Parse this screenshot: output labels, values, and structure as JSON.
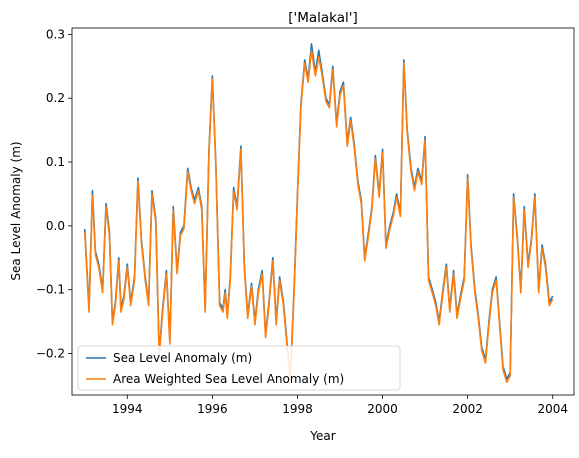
{
  "chart_data": {
    "type": "line",
    "title": "['Malakal']",
    "xlabel": "Year",
    "ylabel": "Sea Level Anomaly (m)",
    "xlim": [
      1992.7,
      2004.5
    ],
    "ylim": [
      -0.265,
      0.31
    ],
    "xticks": [
      1994,
      1996,
      1998,
      2000,
      2002,
      2004
    ],
    "xtick_labels": [
      "1994",
      "1996",
      "1998",
      "2000",
      "2002",
      "2004"
    ],
    "yticks": [
      -0.2,
      -0.1,
      0.0,
      0.1,
      0.2,
      0.3
    ],
    "ytick_labels": [
      "−0.2",
      "−0.1",
      "0.0",
      "0.1",
      "0.2",
      "0.3"
    ],
    "grid": false,
    "legend": {
      "placement": "lower-left",
      "entries": [
        "Sea Level Anomaly (m)",
        "Area Weighted Sea Level Anomaly (m)"
      ]
    },
    "series": [
      {
        "name": "Sea Level Anomaly (m)",
        "color": "#1f77b4",
        "x": [
          1993.0,
          1993.1,
          1993.18,
          1993.25,
          1993.33,
          1993.42,
          1993.5,
          1993.58,
          1993.65,
          1993.72,
          1993.8,
          1993.85,
          1993.92,
          1994.0,
          1994.08,
          1994.17,
          1994.25,
          1994.33,
          1994.42,
          1994.5,
          1994.58,
          1994.67,
          1994.75,
          1994.83,
          1994.92,
          1995.0,
          1995.08,
          1995.17,
          1995.25,
          1995.33,
          1995.42,
          1995.5,
          1995.58,
          1995.67,
          1995.75,
          1995.83,
          1995.92,
          1996.0,
          1996.08,
          1996.17,
          1996.25,
          1996.3,
          1996.35,
          1996.42,
          1996.5,
          1996.58,
          1996.67,
          1996.75,
          1996.83,
          1996.92,
          1997.0,
          1997.08,
          1997.17,
          1997.25,
          1997.33,
          1997.42,
          1997.5,
          1997.58,
          1997.67,
          1997.75,
          1997.83,
          1997.92,
          1998.0,
          1998.08,
          1998.17,
          1998.25,
          1998.33,
          1998.42,
          1998.5,
          1998.58,
          1998.67,
          1998.75,
          1998.83,
          1998.92,
          1999.0,
          1999.08,
          1999.17,
          1999.25,
          1999.33,
          1999.42,
          1999.5,
          1999.58,
          1999.67,
          1999.75,
          1999.83,
          1999.92,
          2000.0,
          2000.08,
          2000.17,
          2000.25,
          2000.33,
          2000.42,
          2000.5,
          2000.58,
          2000.67,
          2000.75,
          2000.83,
          2000.92,
          2001.0,
          2001.08,
          2001.17,
          2001.25,
          2001.33,
          2001.42,
          2001.5,
          2001.58,
          2001.67,
          2001.75,
          2001.83,
          2001.92,
          2002.0,
          2002.08,
          2002.17,
          2002.25,
          2002.33,
          2002.42,
          2002.5,
          2002.58,
          2002.67,
          2002.75,
          2002.83,
          2002.92,
          2003.0,
          2003.08,
          2003.17,
          2003.25,
          2003.33,
          2003.42,
          2003.5,
          2003.58,
          2003.67,
          2003.75,
          2003.83,
          2003.92,
          2004.0
        ],
        "y": [
          -0.005,
          -0.13,
          0.055,
          -0.04,
          -0.06,
          -0.1,
          0.035,
          -0.01,
          -0.15,
          -0.12,
          -0.05,
          -0.13,
          -0.11,
          -0.06,
          -0.12,
          -0.08,
          0.075,
          -0.02,
          -0.08,
          -0.12,
          0.055,
          0.01,
          -0.2,
          -0.13,
          -0.07,
          -0.18,
          0.03,
          -0.07,
          -0.01,
          0.0,
          0.09,
          0.06,
          0.04,
          0.06,
          0.03,
          -0.13,
          0.12,
          0.235,
          0.1,
          -0.12,
          -0.13,
          -0.1,
          -0.14,
          -0.08,
          0.06,
          0.03,
          0.125,
          -0.06,
          -0.14,
          -0.09,
          -0.15,
          -0.1,
          -0.07,
          -0.17,
          -0.12,
          -0.05,
          -0.15,
          -0.08,
          -0.12,
          -0.18,
          -0.24,
          -0.1,
          0.05,
          0.19,
          0.26,
          0.23,
          0.285,
          0.24,
          0.275,
          0.24,
          0.2,
          0.19,
          0.25,
          0.16,
          0.21,
          0.225,
          0.13,
          0.17,
          0.13,
          0.07,
          0.04,
          -0.05,
          -0.01,
          0.03,
          0.11,
          0.05,
          0.12,
          -0.03,
          0.0,
          0.02,
          0.05,
          0.02,
          0.26,
          0.15,
          0.09,
          0.06,
          0.09,
          0.07,
          0.14,
          -0.08,
          -0.1,
          -0.12,
          -0.15,
          -0.1,
          -0.06,
          -0.13,
          -0.07,
          -0.14,
          -0.11,
          -0.08,
          0.08,
          -0.03,
          -0.1,
          -0.14,
          -0.19,
          -0.21,
          -0.15,
          -0.1,
          -0.08,
          -0.15,
          -0.22,
          -0.24,
          -0.23,
          0.05,
          -0.02,
          -0.1,
          0.03,
          -0.06,
          -0.02,
          0.05,
          -0.1,
          -0.03,
          -0.06,
          -0.12,
          -0.11
        ]
      },
      {
        "name": "Area Weighted Sea Level Anomaly (m)",
        "color": "#ff7f0e",
        "x": [
          1993.0,
          1993.1,
          1993.18,
          1993.25,
          1993.33,
          1993.42,
          1993.5,
          1993.58,
          1993.65,
          1993.72,
          1993.8,
          1993.85,
          1993.92,
          1994.0,
          1994.08,
          1994.17,
          1994.25,
          1994.33,
          1994.42,
          1994.5,
          1994.58,
          1994.67,
          1994.75,
          1994.83,
          1994.92,
          1995.0,
          1995.08,
          1995.17,
          1995.25,
          1995.33,
          1995.42,
          1995.5,
          1995.58,
          1995.67,
          1995.75,
          1995.83,
          1995.92,
          1996.0,
          1996.08,
          1996.17,
          1996.25,
          1996.3,
          1996.35,
          1996.42,
          1996.5,
          1996.58,
          1996.67,
          1996.75,
          1996.83,
          1996.92,
          1997.0,
          1997.08,
          1997.17,
          1997.25,
          1997.33,
          1997.42,
          1997.5,
          1997.58,
          1997.67,
          1997.75,
          1997.83,
          1997.92,
          1998.0,
          1998.08,
          1998.17,
          1998.25,
          1998.33,
          1998.42,
          1998.5,
          1998.58,
          1998.67,
          1998.75,
          1998.83,
          1998.92,
          1999.0,
          1999.08,
          1999.17,
          1999.25,
          1999.33,
          1999.42,
          1999.5,
          1999.58,
          1999.67,
          1999.75,
          1999.83,
          1999.92,
          2000.0,
          2000.08,
          2000.17,
          2000.25,
          2000.33,
          2000.42,
          2000.5,
          2000.58,
          2000.67,
          2000.75,
          2000.83,
          2000.92,
          2001.0,
          2001.08,
          2001.17,
          2001.25,
          2001.33,
          2001.42,
          2001.5,
          2001.58,
          2001.67,
          2001.75,
          2001.83,
          2001.92,
          2002.0,
          2002.08,
          2002.17,
          2002.25,
          2002.33,
          2002.42,
          2002.5,
          2002.58,
          2002.67,
          2002.75,
          2002.83,
          2002.92,
          2003.0,
          2003.08,
          2003.17,
          2003.25,
          2003.33,
          2003.42,
          2003.5,
          2003.58,
          2003.67,
          2003.75,
          2003.83,
          2003.92,
          2004.0
        ],
        "y": [
          -0.01,
          -0.135,
          0.048,
          -0.045,
          -0.065,
          -0.105,
          0.03,
          -0.015,
          -0.155,
          -0.125,
          -0.055,
          -0.135,
          -0.115,
          -0.065,
          -0.125,
          -0.085,
          0.07,
          -0.025,
          -0.085,
          -0.125,
          0.05,
          0.005,
          -0.205,
          -0.135,
          -0.075,
          -0.185,
          0.025,
          -0.075,
          -0.015,
          -0.005,
          0.085,
          0.055,
          0.035,
          0.055,
          0.025,
          -0.135,
          0.115,
          0.23,
          0.095,
          -0.125,
          -0.135,
          -0.105,
          -0.145,
          -0.085,
          0.055,
          0.025,
          0.12,
          -0.065,
          -0.145,
          -0.095,
          -0.155,
          -0.105,
          -0.075,
          -0.175,
          -0.125,
          -0.055,
          -0.155,
          -0.085,
          -0.125,
          -0.185,
          -0.245,
          -0.105,
          0.045,
          0.185,
          0.255,
          0.225,
          0.275,
          0.235,
          0.265,
          0.235,
          0.195,
          0.185,
          0.245,
          0.155,
          0.205,
          0.22,
          0.125,
          0.165,
          0.125,
          0.065,
          0.035,
          -0.055,
          -0.015,
          0.025,
          0.105,
          0.045,
          0.115,
          -0.035,
          -0.005,
          0.015,
          0.045,
          0.015,
          0.255,
          0.145,
          0.085,
          0.055,
          0.085,
          0.065,
          0.135,
          -0.085,
          -0.105,
          -0.125,
          -0.155,
          -0.105,
          -0.065,
          -0.135,
          -0.075,
          -0.145,
          -0.115,
          -0.085,
          0.075,
          -0.035,
          -0.105,
          -0.145,
          -0.195,
          -0.215,
          -0.155,
          -0.105,
          -0.085,
          -0.155,
          -0.225,
          -0.245,
          -0.235,
          0.045,
          -0.025,
          -0.105,
          0.025,
          -0.065,
          -0.025,
          0.045,
          -0.105,
          -0.035,
          -0.065,
          -0.125,
          -0.115
        ]
      }
    ]
  }
}
